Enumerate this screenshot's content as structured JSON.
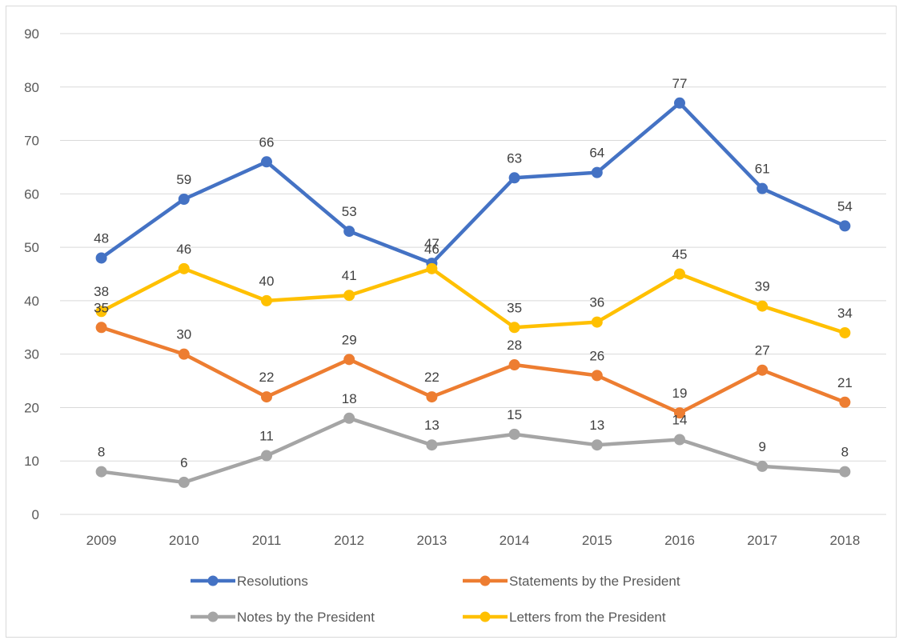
{
  "chart_data": {
    "type": "line",
    "title": "",
    "xlabel": "",
    "ylabel": "",
    "ylim": [
      0,
      90
    ],
    "y_ticks": [
      0,
      10,
      20,
      30,
      40,
      50,
      60,
      70,
      80,
      90
    ],
    "grid": true,
    "legend_position": "bottom",
    "categories": [
      "2009",
      "2010",
      "2011",
      "2012",
      "2013",
      "2014",
      "2015",
      "2016",
      "2017",
      "2018"
    ],
    "series": [
      {
        "name": "Resolutions",
        "color": "#4472c4",
        "values": [
          48,
          59,
          66,
          53,
          47,
          63,
          64,
          77,
          61,
          54
        ]
      },
      {
        "name": "Statements by the President",
        "color": "#ed7d31",
        "values": [
          35,
          30,
          22,
          29,
          22,
          28,
          26,
          19,
          27,
          21
        ]
      },
      {
        "name": "Notes by the President",
        "color": "#a5a5a5",
        "values": [
          8,
          6,
          11,
          18,
          13,
          15,
          13,
          14,
          9,
          8
        ]
      },
      {
        "name": "Letters from the President",
        "color": "#ffc000",
        "values": [
          38,
          46,
          40,
          41,
          46,
          35,
          36,
          45,
          39,
          34
        ]
      }
    ]
  }
}
